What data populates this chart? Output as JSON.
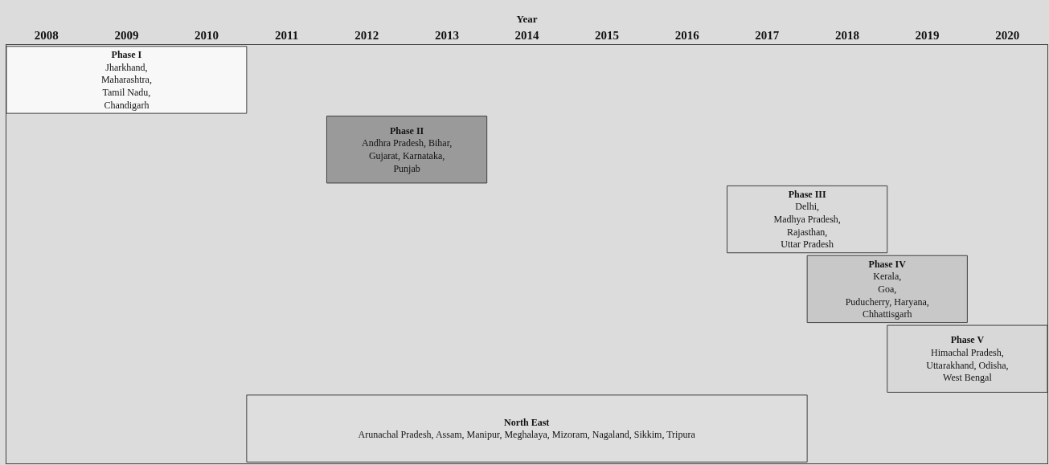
{
  "chart_data": {
    "type": "bar",
    "orientation": "horizontal",
    "xlabel": "Year",
    "categories": [
      "Phase I",
      "Phase II",
      "Phase III",
      "Phase IV",
      "Phase V",
      "North East"
    ],
    "base": [
      2008,
      2012,
      2017,
      2018,
      2019,
      2011
    ],
    "values": [
      3,
      2,
      2,
      2,
      2,
      7
    ],
    "colors": [
      "#f8f8f8",
      "#9a9a9a",
      "#dadada",
      "#c8c8c8",
      "#d8d8d8",
      "#dedede"
    ],
    "value_labels": [
      "Jharkhand,\nMaharashtra,\nTamil Nadu,\nChandigarh",
      "Andhra Pradesh, Bihar,\nGujarat, Karnataka,\nPunjab",
      "Delhi,\nMadhya Pradesh,\nRajasthan,\nUttar Pradesh",
      "Kerala,\nGoa,\nPuducherry, Haryana,\nChhattisgarh",
      "Himachal Pradesh,\nUttarakhand, Odisha,\nWest Bengal",
      "Arunachal Pradesh, Assam, Manipur, Meghalaya, Mizoram, Nagaland, Sikkim, Tripura"
    ],
    "xlim": [
      2008,
      2021
    ],
    "xticks": [
      {
        "value": 2008.5,
        "label": "2008"
      },
      {
        "value": 2009.5,
        "label": "2009"
      },
      {
        "value": 2010.5,
        "label": "2010"
      },
      {
        "value": 2011.5,
        "label": "2011"
      },
      {
        "value": 2012.5,
        "label": "2012"
      },
      {
        "value": 2013.5,
        "label": "2013"
      },
      {
        "value": 2014.5,
        "label": "2014"
      },
      {
        "value": 2015.5,
        "label": "2015"
      },
      {
        "value": 2016.5,
        "label": "2016"
      },
      {
        "value": 2017.5,
        "label": "2017"
      },
      {
        "value": 2018.5,
        "label": "2018"
      },
      {
        "value": 2019.5,
        "label": "2019"
      },
      {
        "value": 2020.5,
        "label": "2020"
      }
    ],
    "tick_labels": "x",
    "grid": false
  }
}
